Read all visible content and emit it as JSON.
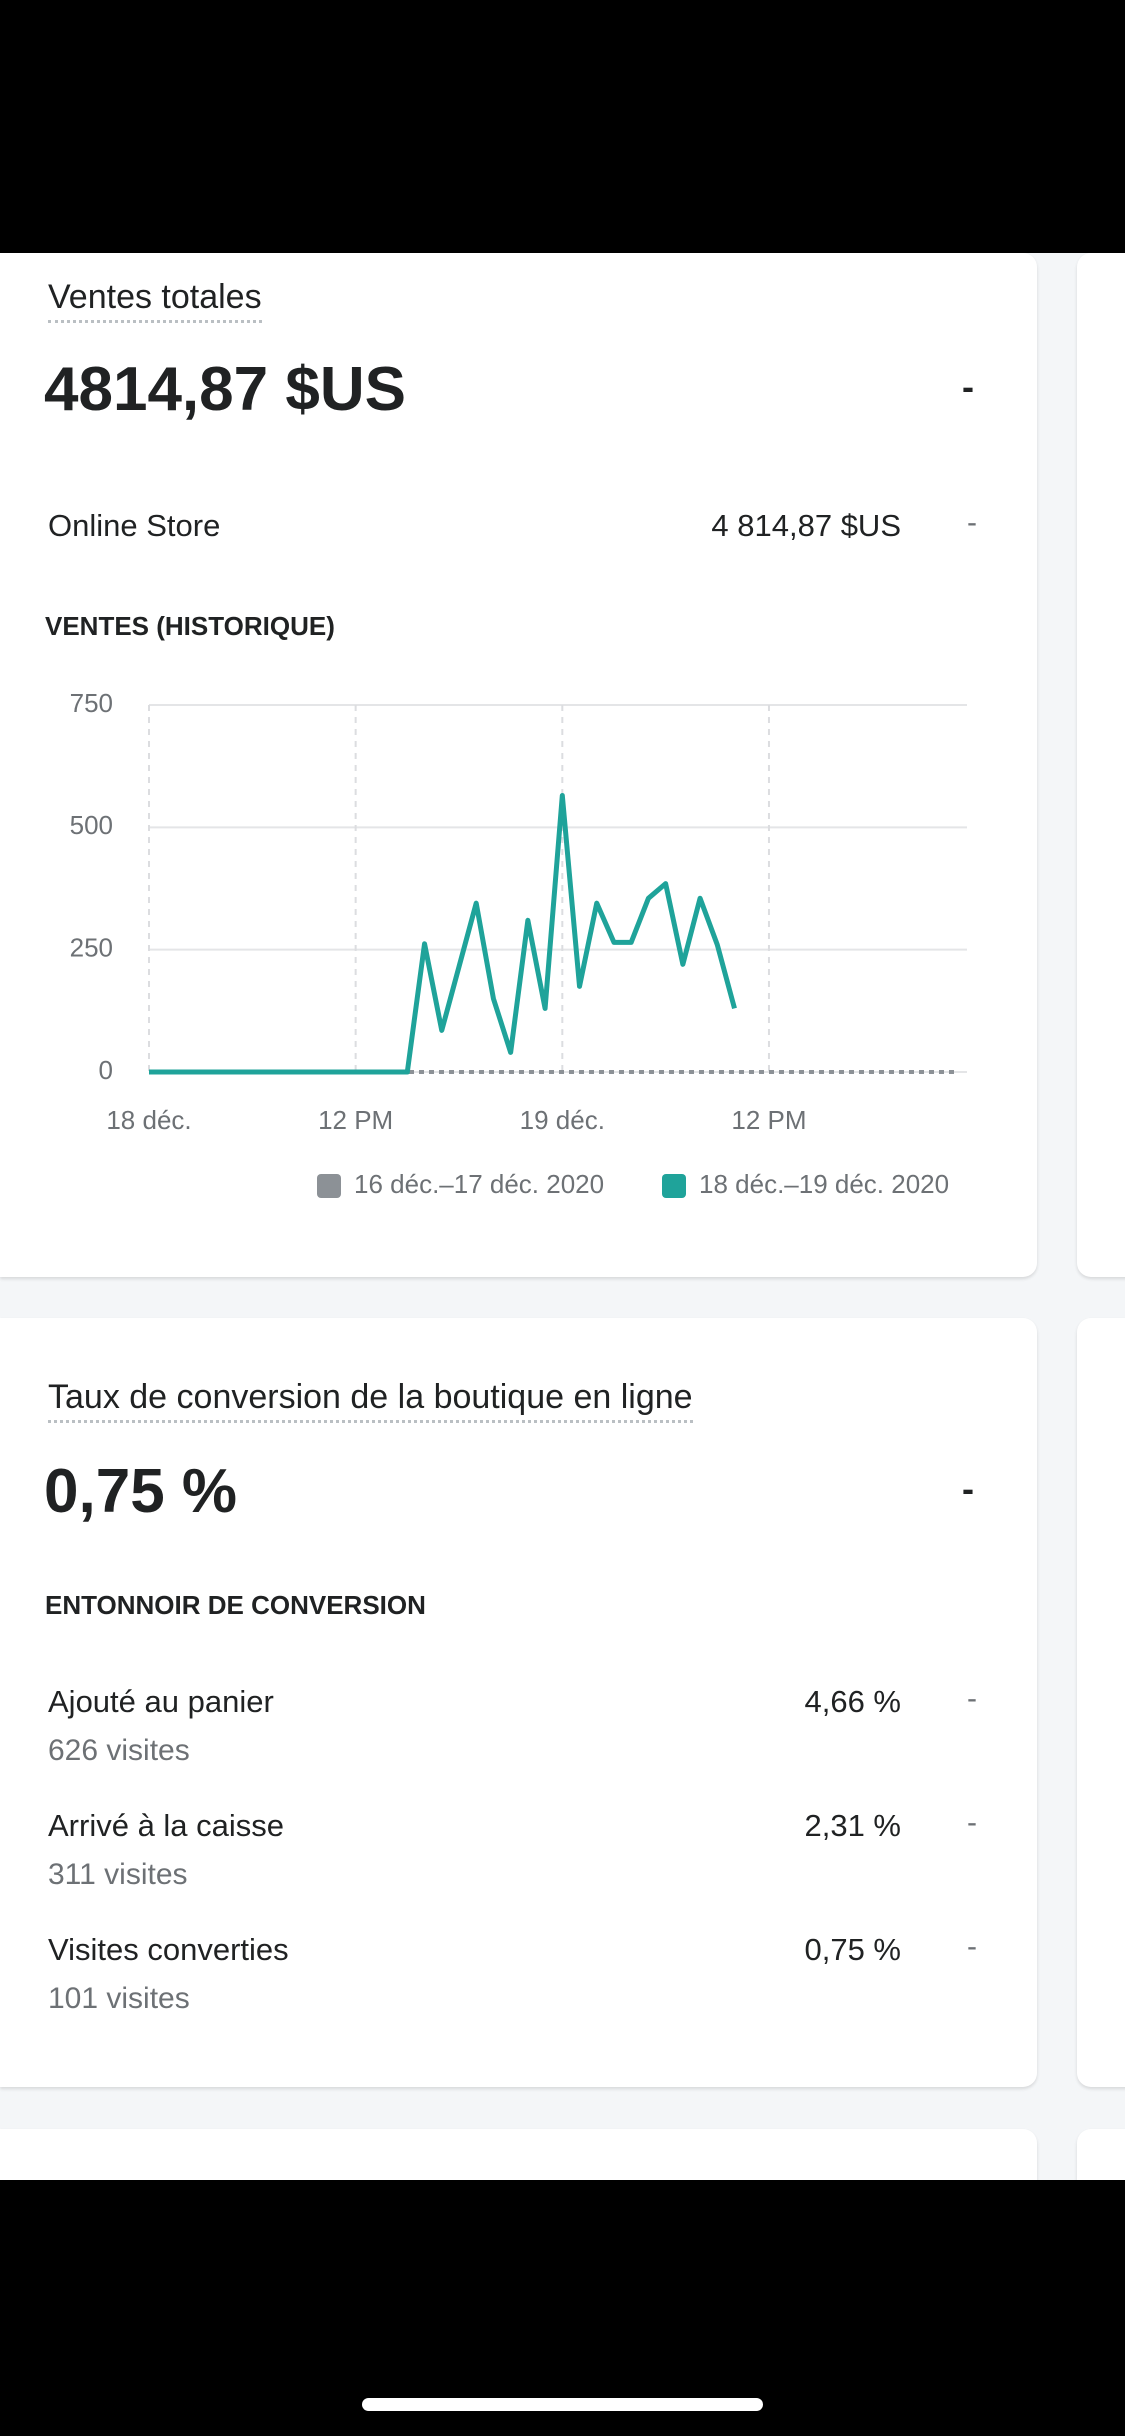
{
  "sales_card": {
    "title": "Ventes totales",
    "total": "4814,87 $US",
    "trend": "-",
    "channel": {
      "name": "Online Store",
      "amount": "4 814,87 $US",
      "trend": "-"
    },
    "section_title": "VENTES (HISTORIQUE)"
  },
  "chart_data": {
    "type": "line",
    "x": [
      0,
      1,
      2,
      3,
      4,
      5,
      6,
      7,
      8,
      9,
      10,
      11,
      12,
      13,
      14,
      15,
      16,
      17,
      18,
      19,
      20,
      21,
      22,
      23,
      24,
      25,
      26,
      27,
      28,
      29,
      30,
      31,
      32,
      33,
      34,
      35,
      36,
      37,
      38,
      39,
      40,
      41,
      42,
      43,
      44,
      45,
      46,
      47
    ],
    "series": [
      {
        "name": "16 déc.–17 déc. 2020",
        "color": "#8c9196",
        "values": [
          0,
          0,
          0,
          0,
          0,
          0,
          0,
          0,
          0,
          0,
          0,
          0,
          0,
          0,
          0,
          0,
          0,
          0,
          0,
          0,
          0,
          0,
          0,
          0,
          0,
          0,
          0,
          0,
          0,
          0,
          0,
          0,
          0,
          0,
          0,
          0,
          0,
          0,
          0,
          0,
          0,
          0,
          0,
          0,
          0,
          0,
          0,
          0
        ]
      },
      {
        "name": "18 déc.–19 déc. 2020",
        "color": "#1fa39a",
        "values": [
          0,
          0,
          0,
          0,
          0,
          0,
          0,
          0,
          0,
          0,
          0,
          0,
          0,
          0,
          0,
          0,
          262,
          85,
          215,
          345,
          150,
          40,
          310,
          130,
          565,
          175,
          345,
          265,
          265,
          355,
          385,
          220,
          355,
          260,
          130,
          null,
          null,
          null,
          null,
          null,
          null,
          null,
          null,
          null,
          null,
          null,
          null,
          null
        ]
      }
    ],
    "xlim": [
      0,
      47.5
    ],
    "xticks": [
      {
        "value": 0,
        "label": "18 déc."
      },
      {
        "value": 12,
        "label": "12 PM"
      },
      {
        "value": 24,
        "label": "19 déc."
      },
      {
        "value": 36,
        "label": "12 PM"
      }
    ],
    "ylim": [
      0,
      750
    ],
    "yticks": [
      0,
      250,
      500,
      750
    ],
    "grid": true
  },
  "conversion_card": {
    "title": "Taux de conversion de la boutique en ligne",
    "rate": "0,75 %",
    "trend": "-",
    "section_title": "ENTONNOIR DE CONVERSION",
    "steps": [
      {
        "label": "Ajouté au panier",
        "visits": "626 visites",
        "rate": "4,66 %",
        "trend": "-"
      },
      {
        "label": "Arrivé à la caisse",
        "visits": "311 visites",
        "rate": "2,31 %",
        "trend": "-"
      },
      {
        "label": "Visites converties",
        "visits": "101 visites",
        "rate": "0,75 %",
        "trend": "-"
      }
    ]
  }
}
